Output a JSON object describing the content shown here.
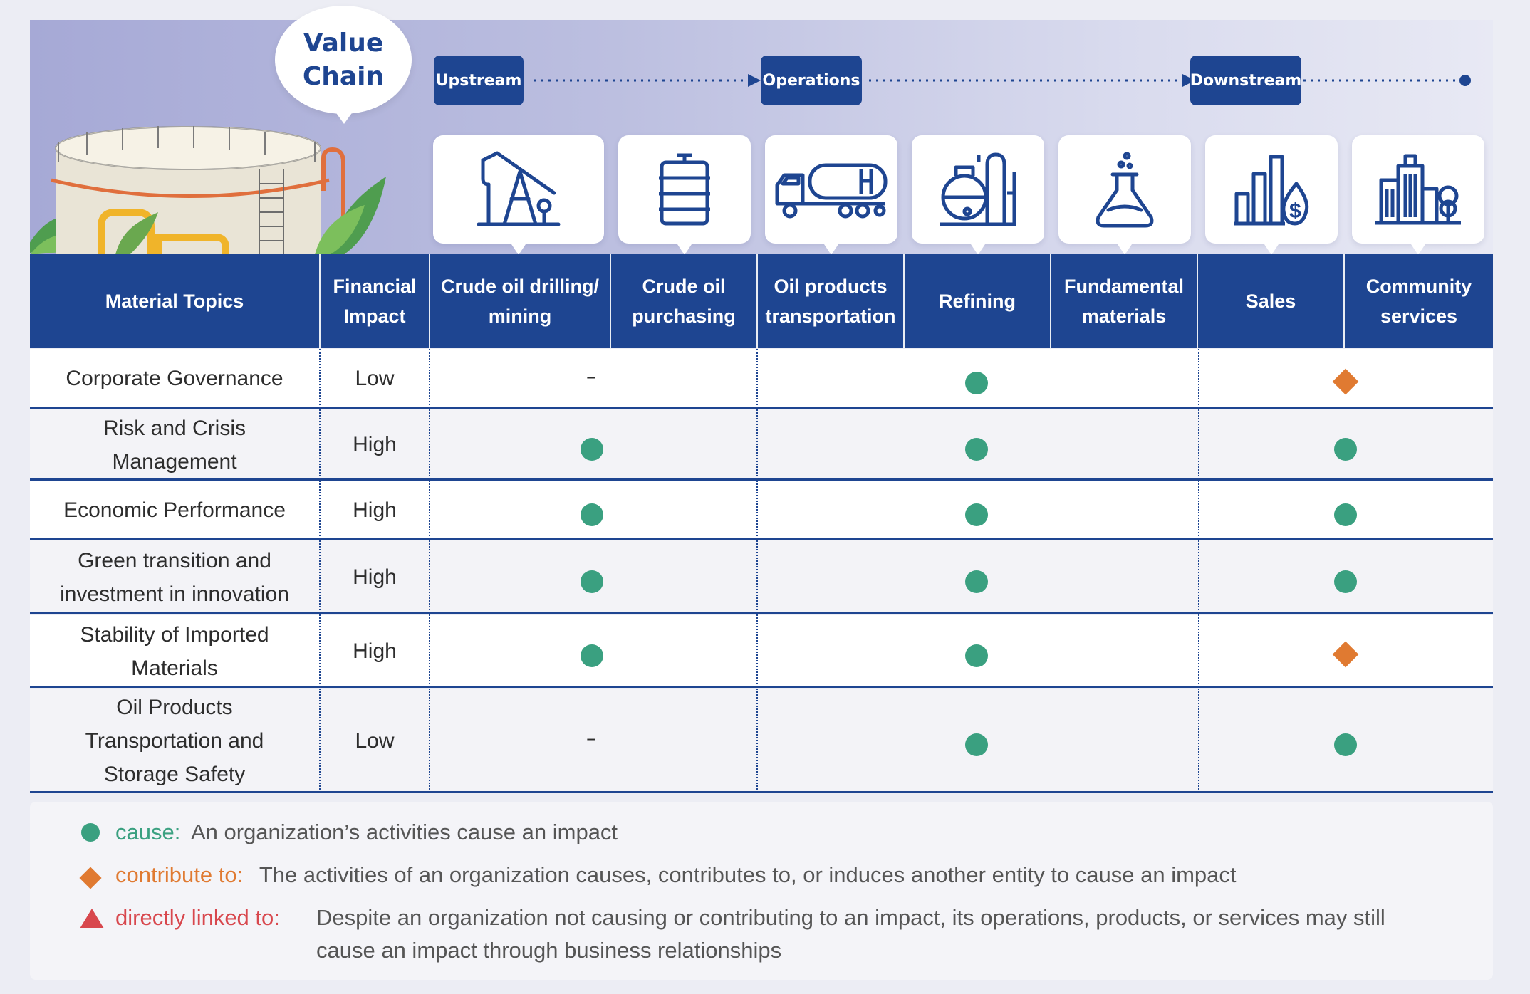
{
  "banner": {
    "title_line1": "Value",
    "title_line2": "Chain",
    "stages": [
      "Upstream",
      "Operations",
      "Downstream"
    ]
  },
  "icons": [
    "oil-pumpjack-icon",
    "oil-barrel-icon",
    "tanker-truck-icon",
    "refinery-icon",
    "flask-icon",
    "sales-chart-icon",
    "city-buildings-icon"
  ],
  "table": {
    "headers": [
      "Material Topics",
      "Financial Impact",
      "Crude oil drilling/ mining",
      "Crude oil purchasing",
      "Oil products transportation",
      "Refining",
      "Fundamental materials",
      "Sales",
      "Community services"
    ],
    "header_lines": [
      [
        "Material Topics"
      ],
      [
        "Financial",
        "Impact"
      ],
      [
        "Crude oil drilling/",
        "mining"
      ],
      [
        "Crude oil",
        "purchasing"
      ],
      [
        "Oil products",
        "transportation"
      ],
      [
        "Refining"
      ],
      [
        "Fundamental",
        "materials"
      ],
      [
        "Sales"
      ],
      [
        "Community",
        "services"
      ]
    ],
    "rows": [
      {
        "topic": "Corporate Governance",
        "topic_lines": [
          "Corporate Governance"
        ],
        "impact": "Low",
        "upstream": "–",
        "operations": "cause",
        "downstream": "contribute to"
      },
      {
        "topic": "Risk and Crisis Management",
        "topic_lines": [
          "Risk and Crisis",
          "Management"
        ],
        "impact": "High",
        "upstream": "cause",
        "operations": "cause",
        "downstream": "cause"
      },
      {
        "topic": "Economic Performance",
        "topic_lines": [
          "Economic Performance"
        ],
        "impact": "High",
        "upstream": "cause",
        "operations": "cause",
        "downstream": "cause"
      },
      {
        "topic": "Green transition and investment in innovation",
        "topic_lines": [
          "Green transition and",
          "investment in innovation"
        ],
        "impact": "High",
        "upstream": "cause",
        "operations": "cause",
        "downstream": "cause"
      },
      {
        "topic": "Stability of Imported Materials",
        "topic_lines": [
          "Stability of Imported",
          "Materials"
        ],
        "impact": "High",
        "upstream": "cause",
        "operations": "cause",
        "downstream": "contribute to"
      },
      {
        "topic": "Oil Products Transportation and Storage Safety",
        "topic_lines": [
          "Oil Products",
          "Transportation and",
          "Storage Safety"
        ],
        "impact": "Low",
        "upstream": "–",
        "operations": "cause",
        "downstream": "cause"
      }
    ]
  },
  "legend": {
    "cause_key": "cause:",
    "cause_text": "An organization’s activities cause an impact",
    "contribute_key": "contribute to:",
    "contribute_text": "The activities of an organization causes, contributes to, or induces another entity to cause an impact",
    "linked_key": "directly linked to:",
    "linked_text_line1": "Despite an organization not causing or contributing to an impact, its operations, products, or services may still",
    "linked_text_line2": "cause an impact through business relationships"
  },
  "colors": {
    "navy": "#1e4591",
    "cause": "#3aa080",
    "contribute": "#e07a31",
    "linked": "#d8474d"
  }
}
